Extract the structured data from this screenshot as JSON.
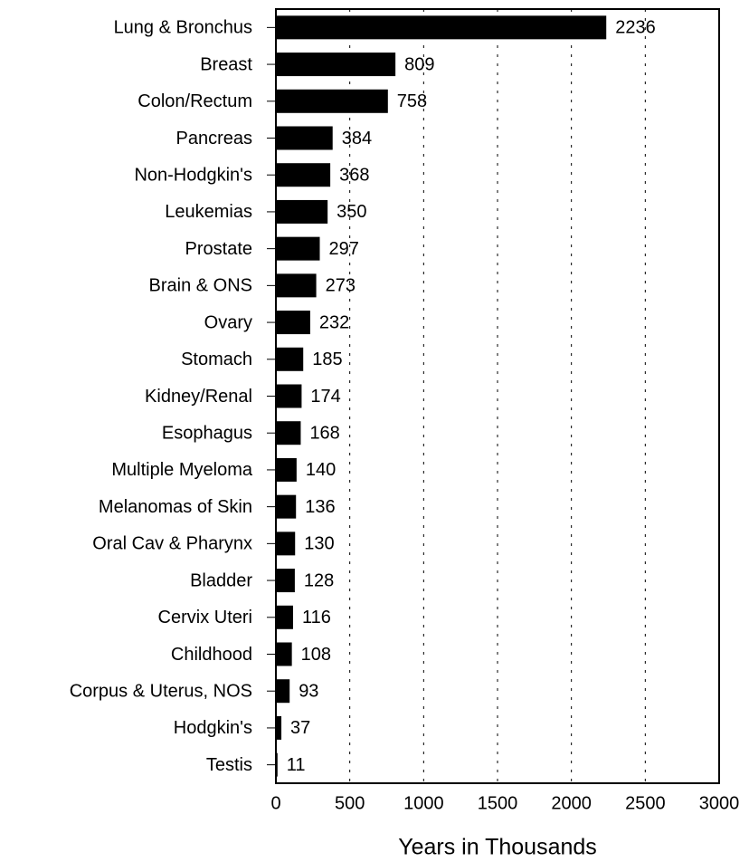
{
  "chart_data": {
    "type": "bar",
    "orientation": "horizontal",
    "x_label": "Years in Thousands",
    "categories": [
      "Lung & Bronchus",
      "Breast",
      "Colon/Rectum",
      "Pancreas",
      "Non-Hodgkin's",
      "Leukemias",
      "Prostate",
      "Brain & ONS",
      "Ovary",
      "Stomach",
      "Kidney/Renal",
      "Esophagus",
      "Multiple Myeloma",
      "Melanomas of Skin",
      "Oral Cav & Pharynx",
      "Bladder",
      "Cervix Uteri",
      "Childhood",
      "Corpus & Uterus, NOS",
      "Hodgkin's",
      "Testis"
    ],
    "values": [
      2236,
      809,
      758,
      384,
      368,
      350,
      297,
      273,
      232,
      185,
      174,
      168,
      140,
      136,
      130,
      128,
      116,
      108,
      93,
      37,
      11
    ],
    "color": "#000000",
    "xlim": [
      0,
      3000
    ],
    "xticks": [
      0,
      500,
      1000,
      1500,
      2000,
      2500,
      3000
    ],
    "grid": true
  }
}
